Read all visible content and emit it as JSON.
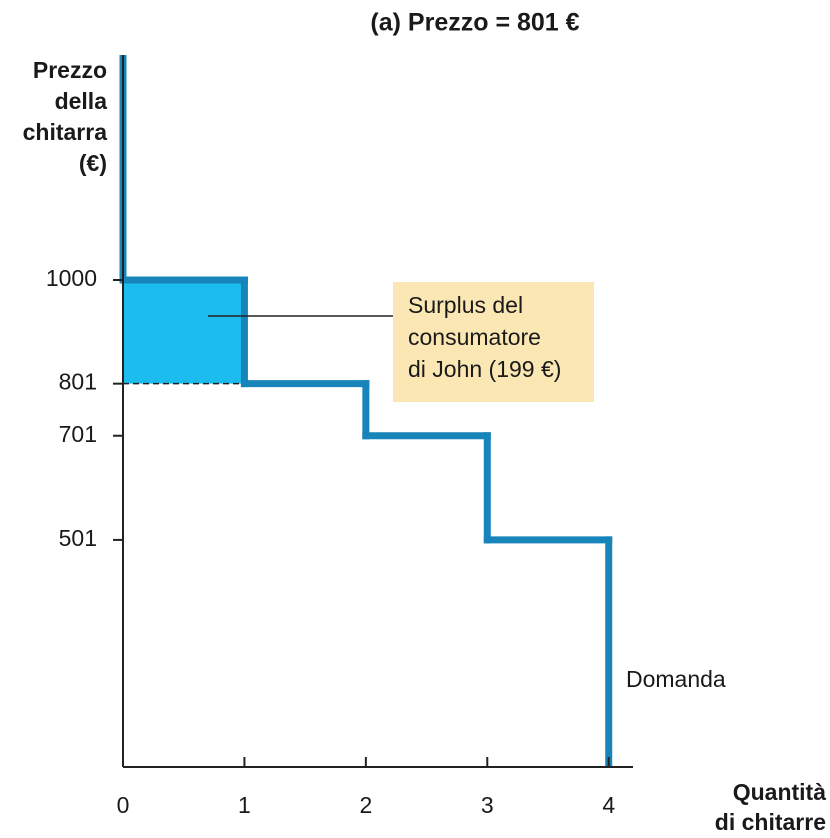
{
  "chart_data": {
    "type": "step",
    "title": "(a) Prezzo = 801 €",
    "y_label": [
      "Prezzo",
      "della",
      "chitarra",
      "(€)"
    ],
    "x_label": [
      "Quantità",
      "di chitarre"
    ],
    "series": [
      {
        "name": "Domanda",
        "color": "#1784ba",
        "x": [
          1,
          2,
          3,
          4
        ],
        "values": [
          1000,
          801,
          701,
          501
        ]
      }
    ],
    "price": 801,
    "surplus_color": "#1dbcef",
    "annotation": [
      "Surplus del",
      "consumatore",
      "di John (199 €)"
    ],
    "annotation_color": "#fbe7b4",
    "xlim": [
      0,
      4.2
    ],
    "xticks": [
      0,
      1,
      2,
      3,
      4
    ],
    "ylim": [
      65,
      1432
    ],
    "yticks": [
      501,
      701,
      801,
      1000
    ]
  }
}
